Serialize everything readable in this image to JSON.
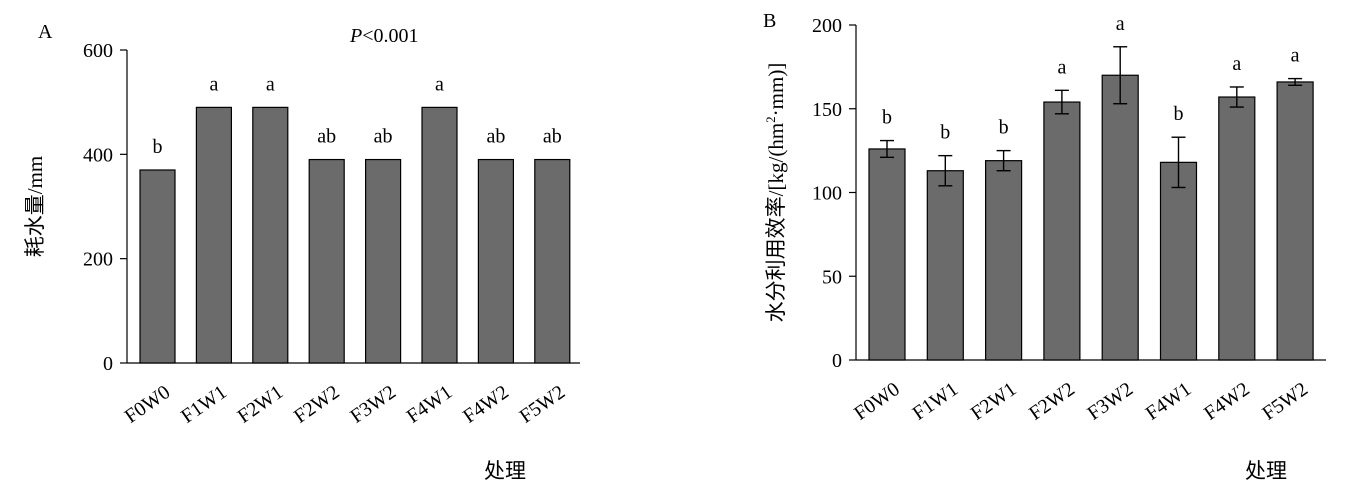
{
  "chart_data": [
    {
      "type": "bar",
      "panel": "A",
      "annotation": {
        "prefix": "P",
        "text": "<0.001"
      },
      "ylabel": "耗水量/mm",
      "xlabel": "处理",
      "ylim": [
        0,
        600
      ],
      "yticks": [
        0,
        200,
        400,
        600
      ],
      "categories": [
        "F0W0",
        "F1W1",
        "F2W1",
        "F2W2",
        "F3W2",
        "F4W1",
        "F4W2",
        "F5W2"
      ],
      "values": [
        370,
        490,
        490,
        390,
        390,
        490,
        390,
        390
      ],
      "significance": [
        "b",
        "a",
        "a",
        "ab",
        "ab",
        "a",
        "ab",
        "ab"
      ],
      "bar_color": "#6b6b6b",
      "grid": false
    },
    {
      "type": "bar",
      "panel": "B",
      "ylabel": "水分利用效率/[kg/(hm²·mm)]",
      "ylabel_parts": {
        "before": "水分利用效率/[kg/(hm",
        "sup": "2",
        "after": "·mm)]"
      },
      "xlabel": "处理",
      "ylim": [
        0,
        200
      ],
      "yticks": [
        0,
        50,
        100,
        150,
        200
      ],
      "categories": [
        "F0W0",
        "F1W1",
        "F2W1",
        "F2W2",
        "F3W2",
        "F4W1",
        "F4W2",
        "F5W2"
      ],
      "values": [
        126,
        113,
        119,
        154,
        170,
        118,
        157,
        166
      ],
      "errors": [
        5,
        9,
        6,
        7,
        17,
        15,
        6,
        2
      ],
      "significance": [
        "b",
        "b",
        "b",
        "a",
        "a",
        "b",
        "a",
        "a"
      ],
      "bar_color": "#6b6b6b",
      "grid": false
    }
  ]
}
